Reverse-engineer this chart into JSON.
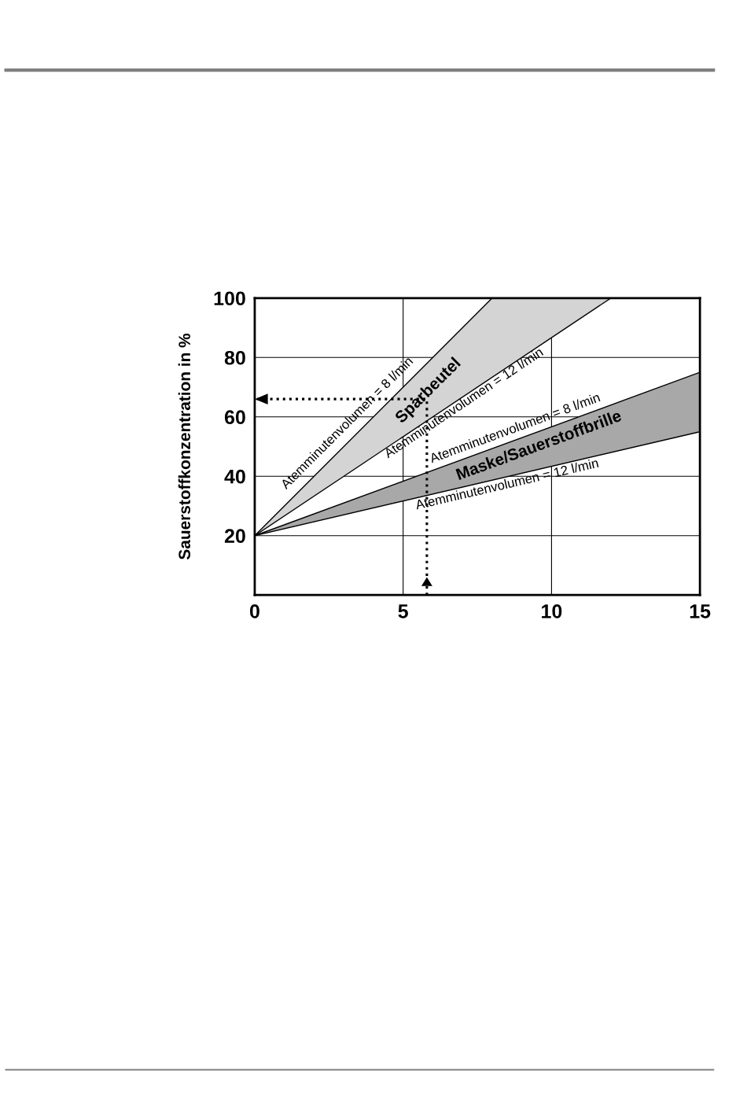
{
  "chart_data": {
    "type": "line",
    "ylabel": "Sauerstoffkonzentration in %",
    "xlim": [
      0,
      15
    ],
    "ylim": [
      0,
      100
    ],
    "xticks": [
      0,
      5,
      10,
      15
    ],
    "yticks": [
      {
        "value": 0,
        "label": null
      },
      20,
      40,
      60,
      80,
      100
    ],
    "grid": true,
    "series": [
      {
        "color": "#000000",
        "x": [
          0,
          8,
          12
        ],
        "values": [
          20,
          100,
          100
        ],
        "lower": [
          20,
          73.3,
          100
        ],
        "upper": [
          20,
          100,
          100
        ]
      },
      {
        "color": "#000000",
        "x": [
          0,
          12
        ],
        "values": [
          20,
          100
        ]
      },
      {
        "color": "#000000",
        "x": [
          0,
          15
        ],
        "values": [
          20,
          75
        ],
        "lower": [
          20,
          55
        ],
        "upper": [
          20,
          75
        ]
      },
      {
        "color": "#000000",
        "x": [
          0,
          15
        ],
        "values": [
          20,
          55
        ]
      },
      {
        "color": "#000000",
        "line_style": "dotted",
        "x": [
          5.8,
          5.8,
          0
        ],
        "values": [
          0,
          66,
          66
        ]
      }
    ],
    "annotations": [
      "Atemminutenvolumen = 8 l/min",
      "Sparbeutel",
      "Atemminutenvolumen = 12 l/min",
      "Atemminutenvolumen = 8 l/min",
      "Maske/Sauerstoffbrille",
      "Atemminutenvolumen = 12 l/min"
    ]
  }
}
